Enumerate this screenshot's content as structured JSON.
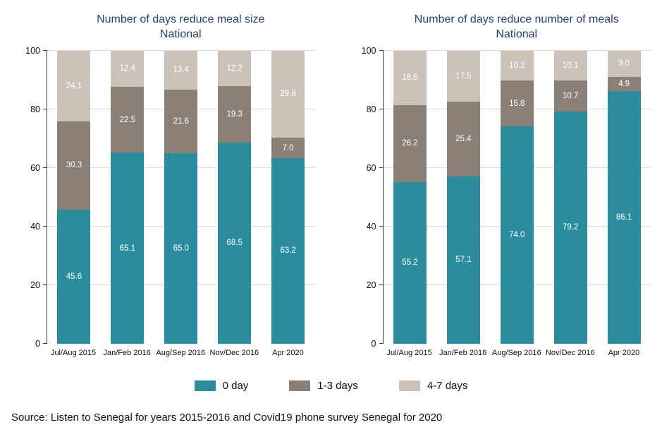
{
  "page": {
    "source": "Source: Listen to Senegal for years 2015-2016 and Covid19 phone survey Senegal for 2020"
  },
  "colors": {
    "series_0_day": "#2b8c9e",
    "series_1_3_days": "#8b8077",
    "series_4_7_days": "#cbc3ba",
    "title_text": "#27416b"
  },
  "legend": {
    "position": "bottom",
    "items": [
      {
        "label": "0 day",
        "color": "#2b8c9e"
      },
      {
        "label": "1-3 days",
        "color": "#8b8077"
      },
      {
        "label": "4-7 days",
        "color": "#cbc3ba"
      }
    ]
  },
  "chart_data": [
    {
      "type": "bar",
      "stacked": true,
      "title": "Number of days reduce meal size",
      "subtitle": "National",
      "categories": [
        "Jul/Aug 2015",
        "Jan/Feb 2016",
        "Aug/Sep 2016",
        "Nov/Dec 2016",
        "Apr 2020"
      ],
      "series": [
        {
          "name": "0 day",
          "color": "#2b8c9e",
          "values": [
            45.6,
            65.1,
            65.0,
            68.5,
            63.2
          ]
        },
        {
          "name": "1-3 days",
          "color": "#8b8077",
          "values": [
            30.3,
            22.5,
            21.6,
            19.3,
            7.0
          ]
        },
        {
          "name": "4-7 days",
          "color": "#cbc3ba",
          "values": [
            24.1,
            12.4,
            13.4,
            12.2,
            29.8
          ]
        }
      ],
      "xlabel": "",
      "ylabel": "",
      "ylim": [
        0,
        100
      ],
      "yticks": [
        0,
        20,
        40,
        60,
        80,
        100
      ],
      "grid": true,
      "legend_position": "bottom"
    },
    {
      "type": "bar",
      "stacked": true,
      "title": "Number of days reduce number of meals",
      "subtitle": "National",
      "categories": [
        "Jul/Aug 2015",
        "Jan/Feb 2016",
        "Aug/Sep 2016",
        "Nov/Dec 2016",
        "Apr 2020"
      ],
      "series": [
        {
          "name": "0 day",
          "color": "#2b8c9e",
          "values": [
            55.2,
            57.1,
            74.0,
            79.2,
            86.1
          ]
        },
        {
          "name": "1-3 days",
          "color": "#8b8077",
          "values": [
            26.2,
            25.4,
            15.8,
            10.7,
            4.9
          ]
        },
        {
          "name": "4-7 days",
          "color": "#cbc3ba",
          "values": [
            18.6,
            17.5,
            10.2,
            10.1,
            9.0
          ]
        }
      ],
      "xlabel": "",
      "ylabel": "",
      "ylim": [
        0,
        100
      ],
      "yticks": [
        0,
        20,
        40,
        60,
        80,
        100
      ],
      "grid": true,
      "legend_position": "bottom"
    }
  ]
}
